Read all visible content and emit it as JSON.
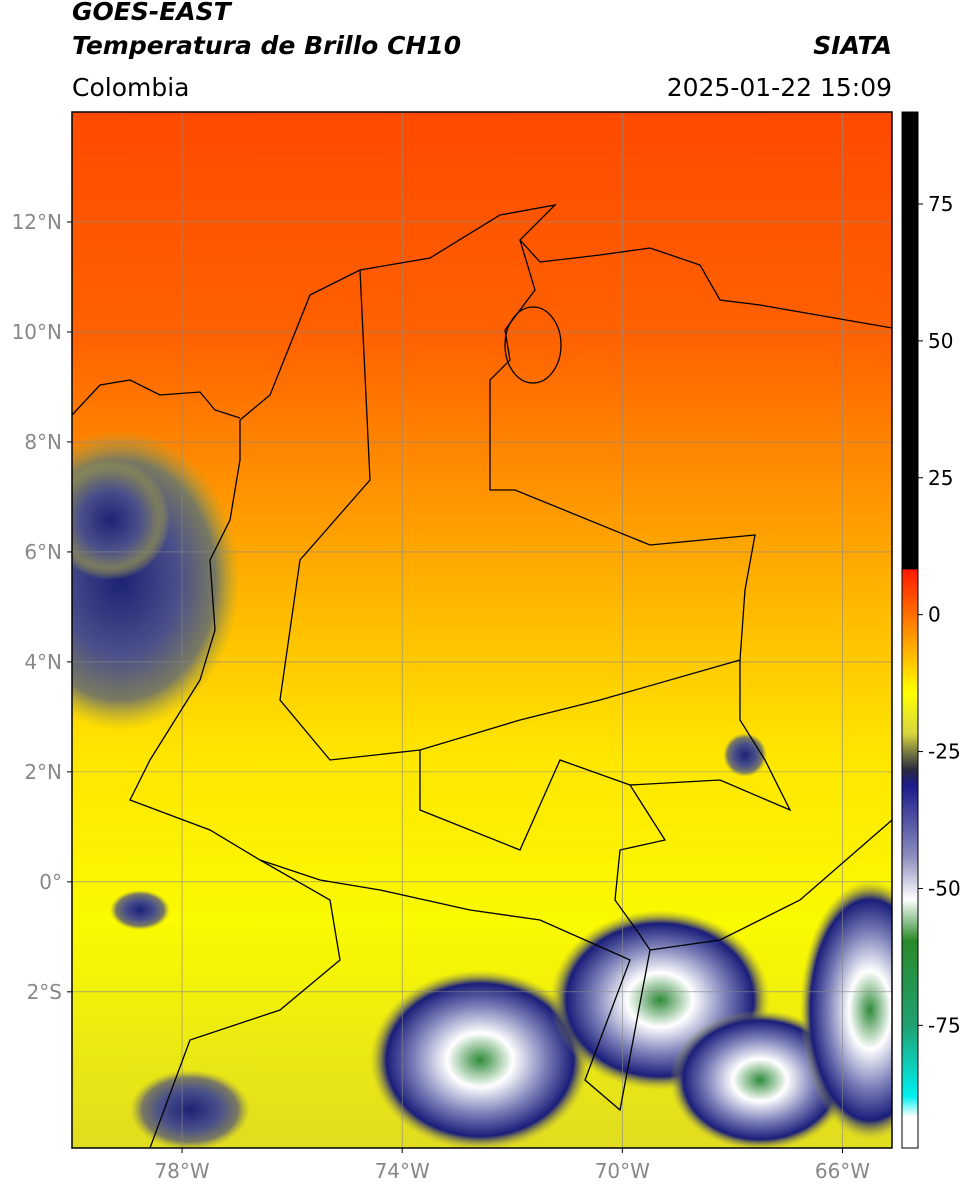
{
  "header": {
    "title": "GOES-EAST",
    "subtitle": "Temperatura de Brillo CH10",
    "source": "SIATA",
    "region": "Colombia",
    "datetime": "2025-01-22 15:09"
  },
  "map": {
    "lonlim": [
      -80,
      -65.1
    ],
    "latlim": [
      -4.84,
      14
    ],
    "grid": true,
    "lonticks": [
      {
        "value": -78,
        "label": "78°W"
      },
      {
        "value": -74,
        "label": "74°W"
      },
      {
        "value": -70,
        "label": "70°W"
      },
      {
        "value": -66,
        "label": "66°W"
      }
    ],
    "latticks": [
      {
        "value": 12,
        "label": "12°N"
      },
      {
        "value": 10,
        "label": "10°N"
      },
      {
        "value": 8,
        "label": "8°N"
      },
      {
        "value": 6,
        "label": "6°N"
      },
      {
        "value": 4,
        "label": "4°N"
      },
      {
        "value": 2,
        "label": "2°N"
      },
      {
        "value": 0,
        "label": "0°"
      },
      {
        "value": -2,
        "label": "2°S"
      }
    ]
  },
  "colorbar": {
    "lim": [
      -97.4,
      91.8
    ],
    "ticks": [
      75,
      50,
      25,
      0,
      -25,
      -50,
      -75
    ]
  }
}
